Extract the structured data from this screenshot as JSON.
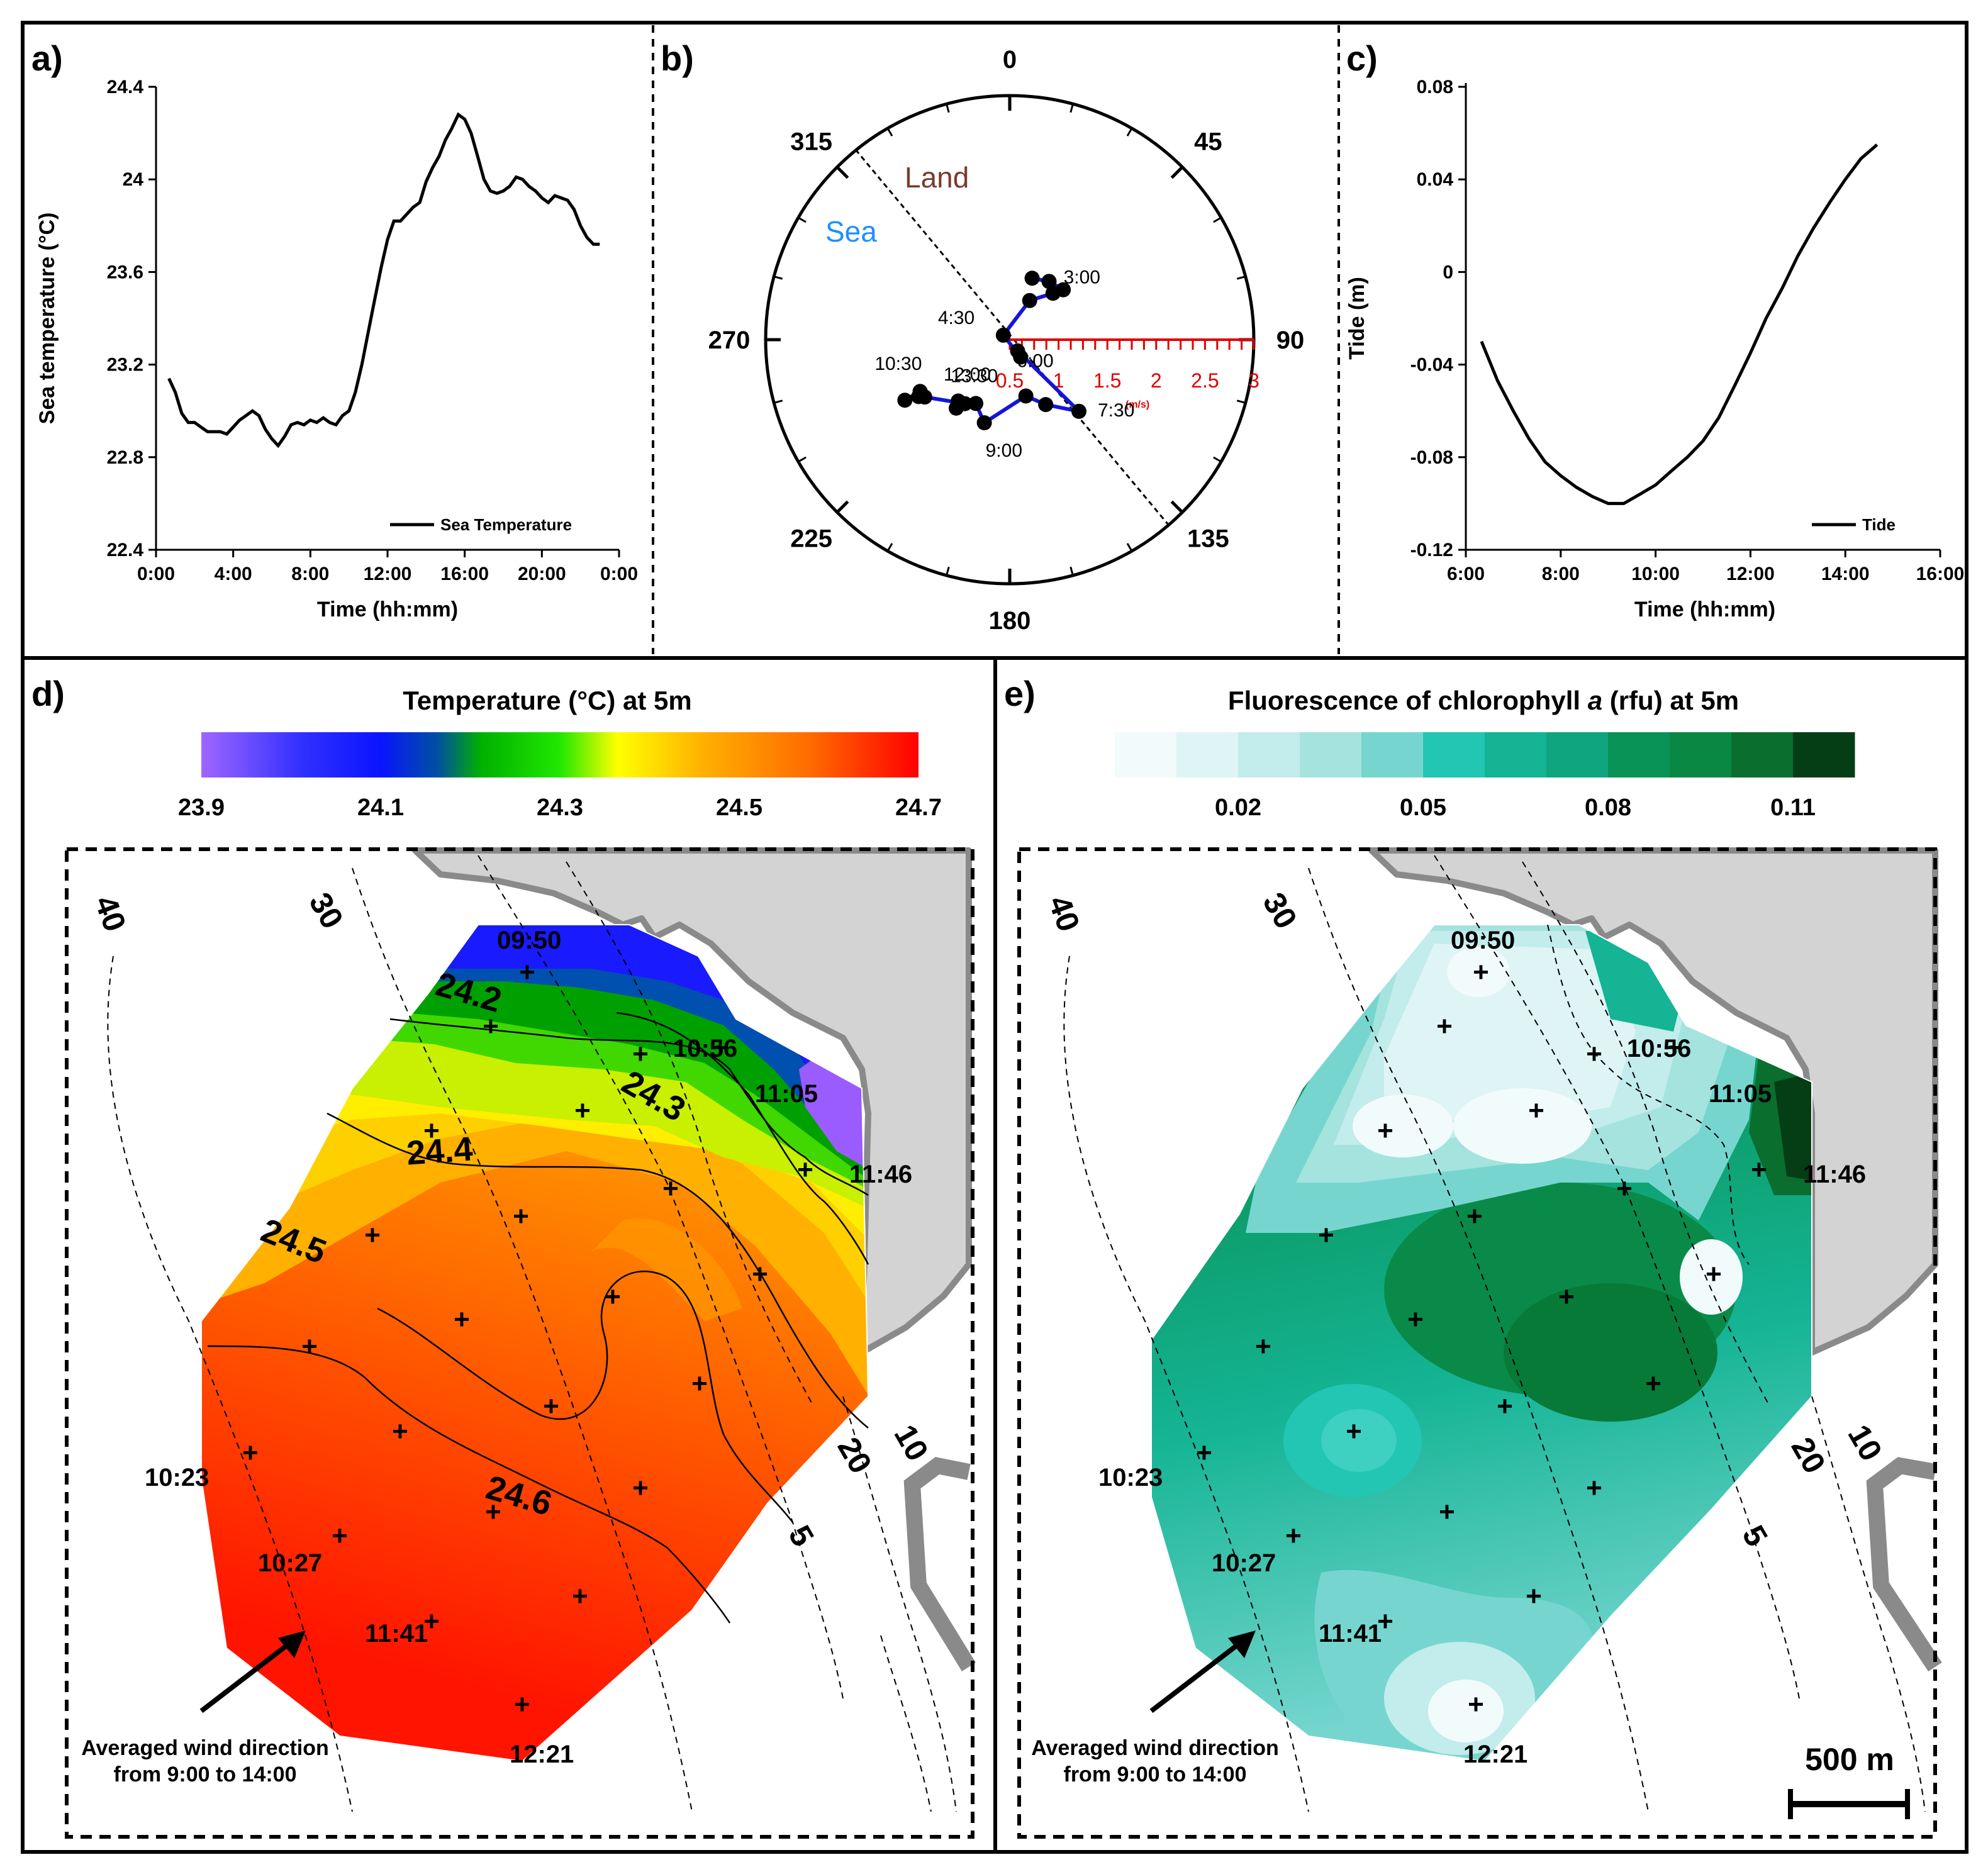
{
  "panels": {
    "a": "a)",
    "b": "b)",
    "c": "c)",
    "d": "d)",
    "e": "e)"
  },
  "chart_data": [
    {
      "id": "a",
      "type": "line",
      "xlabel": "Time (hh:mm)",
      "ylabel": "Sea temperature (°C)",
      "legend": "Sea Temperature",
      "legend_position": "bottom-right",
      "xlim": [
        0,
        24
      ],
      "ylim": [
        22.4,
        24.4
      ],
      "x_ticks": [
        0,
        4,
        8,
        12,
        16,
        20,
        24
      ],
      "x_tick_labels": [
        "0:00",
        "4:00",
        "8:00",
        "12:00",
        "16:00",
        "20:00",
        "0:00"
      ],
      "y_ticks": [
        22.4,
        22.8,
        23.2,
        23.6,
        24.0,
        24.4
      ],
      "y_tick_labels": [
        "22.4",
        "22.8",
        "23.2",
        "23.6",
        "24",
        "24.4"
      ],
      "x": [
        0.67,
        1.0,
        1.33,
        1.67,
        2.0,
        2.33,
        2.67,
        3.0,
        3.33,
        3.67,
        4.0,
        4.33,
        4.67,
        5.0,
        5.33,
        5.67,
        6.0,
        6.33,
        6.67,
        7.0,
        7.33,
        7.67,
        8.0,
        8.33,
        8.67,
        9.0,
        9.33,
        9.67,
        10.0,
        10.33,
        10.67,
        11.0,
        11.33,
        11.67,
        12.0,
        12.33,
        12.67,
        13.0,
        13.33,
        13.67,
        14.0,
        14.33,
        14.67,
        15.0,
        15.33,
        15.67,
        16.0,
        16.33,
        16.67,
        17.0,
        17.33,
        17.67,
        18.0,
        18.33,
        18.67,
        19.0,
        19.33,
        19.67,
        20.0,
        20.33,
        20.67,
        21.0,
        21.33,
        21.67,
        22.0,
        22.33,
        22.67,
        23.0
      ],
      "y": [
        23.14,
        23.08,
        22.99,
        22.95,
        22.95,
        22.93,
        22.91,
        22.91,
        22.91,
        22.9,
        22.93,
        22.96,
        22.98,
        23.0,
        22.98,
        22.92,
        22.88,
        22.85,
        22.89,
        22.94,
        22.95,
        22.94,
        22.96,
        22.95,
        22.97,
        22.95,
        22.94,
        22.98,
        23.0,
        23.08,
        23.2,
        23.34,
        23.48,
        23.62,
        23.74,
        23.82,
        23.82,
        23.85,
        23.88,
        23.9,
        23.99,
        24.05,
        24.1,
        24.17,
        24.22,
        24.28,
        24.26,
        24.2,
        24.1,
        24.0,
        23.95,
        23.94,
        23.95,
        23.97,
        24.01,
        24.0,
        23.97,
        23.95,
        23.92,
        23.9,
        23.93,
        23.92,
        23.91,
        23.87,
        23.8,
        23.75,
        23.72,
        23.72
      ]
    },
    {
      "id": "b",
      "type": "polar",
      "title": "",
      "direction_ticks": [
        "0",
        "45",
        "90",
        "135",
        "180",
        "225",
        "270",
        "315"
      ],
      "region_labels": {
        "land": "Land",
        "sea": "Sea"
      },
      "speed_scale_ticks": [
        "0.5",
        "1",
        "1.5",
        "2",
        "2.5",
        "3"
      ],
      "speed_unit": "(m/s)",
      "speed_range": [
        0.5,
        3.0
      ],
      "coast_axis_deg": 315,
      "points": [
        {
          "time": "3:00",
          "dir": 20,
          "speed": 1.17,
          "label": true
        },
        {
          "time": "",
          "dir": 34,
          "speed": 1.22,
          "label": false
        },
        {
          "time": "",
          "dir": 47,
          "speed": 1.25,
          "label": false
        },
        {
          "time": "",
          "dir": 43,
          "speed": 1.15,
          "label": false
        },
        {
          "time": "",
          "dir": 27,
          "speed": 0.95,
          "label": false
        },
        {
          "time": "4:30",
          "dir": 305,
          "speed": 0.58,
          "label": true
        },
        {
          "time": "6:00",
          "dir": 148,
          "speed": 0.71,
          "label": true
        },
        {
          "time": "",
          "dir": 145,
          "speed": 0.64,
          "label": false
        },
        {
          "time": "7:30",
          "dir": 136,
          "speed": 1.52,
          "label": true
        },
        {
          "time": "",
          "dir": 151,
          "speed": 1.26,
          "label": false
        },
        {
          "time": "",
          "dir": 164,
          "speed": 1.1,
          "label": false
        },
        {
          "time": "9:00",
          "dir": 197,
          "speed": 1.39,
          "label": true
        },
        {
          "time": "",
          "dir": 208,
          "speed": 1.24,
          "label": false
        },
        {
          "time": "",
          "dir": 215,
          "speed": 1.3,
          "label": false
        },
        {
          "time": "",
          "dir": 218,
          "speed": 1.39,
          "label": false
        },
        {
          "time": "13:30",
          "dir": 220,
          "speed": 1.32,
          "label": true
        },
        {
          "time": "",
          "dir": 219,
          "speed": 1.33,
          "label": false
        },
        {
          "time": "12:00",
          "dir": 236,
          "speed": 1.55,
          "label": true
        },
        {
          "time": "",
          "dir": 240,
          "speed": 1.56,
          "label": false
        },
        {
          "time": "10:30",
          "dir": 240,
          "speed": 1.74,
          "label": true
        },
        {
          "time": "",
          "dir": 238,
          "speed": 1.6,
          "label": false
        }
      ]
    },
    {
      "id": "c",
      "type": "line",
      "xlabel": "Time (hh:mm)",
      "ylabel": "Tide (m)",
      "legend": "Tide",
      "legend_position": "bottom-right",
      "xlim": [
        6,
        16
      ],
      "ylim": [
        -0.12,
        0.08
      ],
      "x_ticks": [
        6,
        8,
        10,
        12,
        14,
        16
      ],
      "x_tick_labels": [
        "6:00",
        "8:00",
        "10:00",
        "12:00",
        "14:00",
        "16:00"
      ],
      "y_ticks": [
        -0.12,
        -0.08,
        -0.04,
        0,
        0.04,
        0.08
      ],
      "y_tick_labels": [
        "-0.12",
        "-0.08",
        "-0.04",
        "0",
        "0.04",
        "0.08"
      ],
      "x": [
        6.33,
        6.67,
        7.0,
        7.33,
        7.67,
        8.0,
        8.33,
        8.67,
        9.0,
        9.33,
        9.67,
        10.0,
        10.33,
        10.67,
        11.0,
        11.33,
        11.67,
        12.0,
        12.33,
        12.67,
        13.0,
        13.33,
        13.67,
        14.0,
        14.33,
        14.67
      ],
      "y": [
        -0.03,
        -0.047,
        -0.06,
        -0.072,
        -0.082,
        -0.088,
        -0.093,
        -0.097,
        -0.1,
        -0.1,
        -0.096,
        -0.092,
        -0.086,
        -0.08,
        -0.073,
        -0.063,
        -0.049,
        -0.035,
        -0.02,
        -0.007,
        0.007,
        0.019,
        0.03,
        0.04,
        0.049,
        0.055
      ]
    },
    {
      "id": "d",
      "type": "heatmap",
      "title": "Temperature (°C) at 5m",
      "colorbar_ticks": [
        "23.9",
        "24.1",
        "24.3",
        "24.5",
        "24.7"
      ],
      "colorbar_range": [
        23.9,
        24.7
      ],
      "colors": [
        "#9b5cff",
        "#0a14ff",
        "#00d000",
        "#ffff00",
        "#ffc000",
        "#ff6a00",
        "#ff1a00"
      ],
      "contour_labels": [
        "24.2",
        "24.3",
        "24.4",
        "24.5",
        "24.6"
      ],
      "isobath_labels": [
        "40",
        "30",
        "20",
        "10",
        "5"
      ],
      "station_times": [
        "09:50",
        "10:56",
        "11:05",
        "11:46",
        "10:23",
        "10:27",
        "11:41",
        "12:21"
      ],
      "wind_label_line1": "Averaged wind direction",
      "wind_label_line2": "from 9:00 to 14:00"
    },
    {
      "id": "e",
      "type": "heatmap",
      "title_part1": "Fluorescence of chlorophyll ",
      "title_italic": "a",
      "title_part2": " (rfu) at 5m",
      "colorbar_ticks": [
        "0.02",
        "0.05",
        "0.08",
        "0.11"
      ],
      "colorbar_range": [
        0.0,
        0.12
      ],
      "colors": [
        "#f2fbfc",
        "#dff4f5",
        "#c3ecec",
        "#a5e3df",
        "#76d6cf",
        "#22c6b2",
        "#14b495",
        "#0fa57e",
        "#0a9356",
        "#088842",
        "#0a6e2e",
        "#053d15"
      ],
      "isobath_labels": [
        "40",
        "30",
        "20",
        "10",
        "5"
      ],
      "station_times": [
        "09:50",
        "10:56",
        "11:05",
        "11:46",
        "10:23",
        "10:27",
        "11:41",
        "12:21"
      ],
      "scale_bar": "500 m",
      "wind_label_line1": "Averaged wind direction",
      "wind_label_line2": "from 9:00 to 14:00"
    }
  ]
}
